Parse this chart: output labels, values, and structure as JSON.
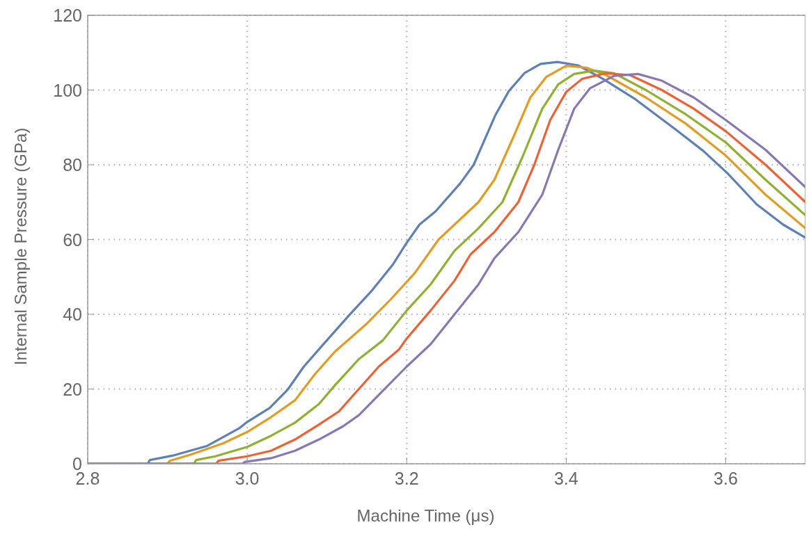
{
  "chart_data": {
    "type": "line",
    "xlabel": "Machine Time (μs)",
    "ylabel": "Internal Sample Pressure (GPa)",
    "xlim": [
      2.8,
      3.7
    ],
    "ylim": [
      0,
      120
    ],
    "xticks": [
      2.8,
      {
        "value": 3.0,
        "label": "3.0"
      },
      3.2,
      3.4,
      3.6
    ],
    "yticks": [
      0,
      20,
      40,
      60,
      80,
      100,
      120
    ],
    "grid": true,
    "line_style": "solid",
    "series": [
      {
        "color": "#5e81b5",
        "x": [
          2.8,
          2.875,
          2.878,
          2.907,
          2.95,
          2.99,
          3.0,
          3.028,
          3.051,
          3.071,
          3.094,
          3.128,
          3.157,
          3.183,
          3.199,
          3.216,
          3.236,
          3.267,
          3.284,
          3.311,
          3.328,
          3.348,
          3.368,
          3.389,
          3.415,
          3.446,
          3.487,
          3.537,
          3.572,
          3.602,
          3.639,
          3.672,
          3.7
        ],
        "values": [
          0,
          0,
          1,
          2.2,
          4.8,
          9.5,
          11.2,
          14.9,
          19.9,
          26,
          31.6,
          39.8,
          46.5,
          53.4,
          58.8,
          64,
          67.5,
          75,
          80,
          93.2,
          99.7,
          104.6,
          107,
          107.5,
          106.6,
          103,
          97.5,
          89.5,
          83.7,
          77.8,
          69.4,
          64,
          60.5
        ]
      },
      {
        "color": "#e19c24",
        "x": [
          2.8,
          2.9,
          2.903,
          2.93,
          2.97,
          3.0,
          3.03,
          3.06,
          3.085,
          3.11,
          3.15,
          3.18,
          3.21,
          3.24,
          3.26,
          3.29,
          3.31,
          3.335,
          3.355,
          3.375,
          3.4,
          3.425,
          3.45,
          3.5,
          3.55,
          3.6,
          3.65,
          3.7
        ],
        "values": [
          0,
          0,
          0.8,
          2.5,
          5.5,
          8.5,
          12.5,
          17,
          24,
          30,
          37.5,
          44,
          51,
          60,
          64,
          70,
          76,
          88,
          98,
          103.5,
          106.5,
          106,
          104,
          98,
          91,
          82.5,
          72,
          63
        ]
      },
      {
        "color": "#8fb032",
        "x": [
          2.8,
          2.933,
          2.936,
          2.96,
          3.0,
          3.03,
          3.06,
          3.09,
          3.11,
          3.14,
          3.17,
          3.2,
          3.23,
          3.26,
          3.29,
          3.32,
          3.345,
          3.37,
          3.39,
          3.41,
          3.435,
          3.46,
          3.5,
          3.55,
          3.6,
          3.65,
          3.7
        ],
        "values": [
          0,
          0,
          1,
          2,
          4.5,
          7.5,
          11,
          16,
          21,
          28,
          33,
          41,
          48,
          57,
          63,
          70,
          82,
          95,
          101.5,
          104.3,
          105.2,
          104.5,
          100,
          93.5,
          86,
          76,
          66.5
        ]
      },
      {
        "color": "#eb6235",
        "x": [
          2.8,
          2.961,
          2.964,
          3.0,
          3.03,
          3.06,
          3.09,
          3.115,
          3.14,
          3.165,
          3.19,
          3.2,
          3.23,
          3.26,
          3.28,
          3.31,
          3.34,
          3.36,
          3.38,
          3.4,
          3.42,
          3.45,
          3.48,
          3.52,
          3.56,
          3.6,
          3.65,
          3.7
        ],
        "values": [
          0,
          0,
          0.8,
          2,
          3.5,
          6.5,
          10.5,
          14,
          20,
          26,
          30.5,
          33.5,
          41,
          49,
          56,
          62,
          70,
          80,
          92,
          99.5,
          103,
          104.5,
          104,
          100,
          95,
          89,
          80,
          70
        ]
      },
      {
        "color": "#8778b3",
        "x": [
          2.8,
          2.994,
          2.997,
          3.03,
          3.06,
          3.09,
          3.12,
          3.14,
          3.17,
          3.2,
          3.23,
          3.26,
          3.29,
          3.31,
          3.34,
          3.37,
          3.39,
          3.41,
          3.43,
          3.46,
          3.49,
          3.52,
          3.56,
          3.6,
          3.65,
          3.7
        ],
        "values": [
          0,
          0,
          0.5,
          1.5,
          3.5,
          6.5,
          10,
          13,
          19.5,
          26,
          32,
          40,
          48,
          55,
          62,
          72,
          84,
          95,
          100.5,
          103.8,
          104.3,
          102.5,
          98,
          92,
          84,
          74
        ]
      }
    ]
  }
}
